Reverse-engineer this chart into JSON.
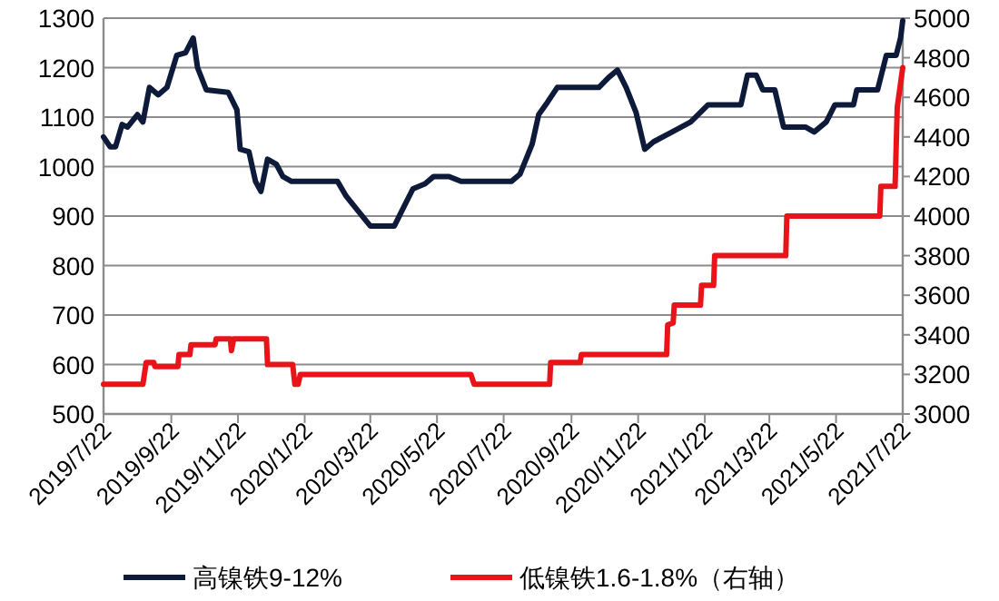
{
  "chart_data": {
    "type": "line",
    "xlim": [
      "2019-07-22",
      "2021-07-22"
    ],
    "xticks": [
      {
        "value": "2019-07-22",
        "label": "2019/7/22"
      },
      {
        "value": "2019-09-22",
        "label": "2019/9/22"
      },
      {
        "value": "2019-11-22",
        "label": "2019/11/22"
      },
      {
        "value": "2020-01-22",
        "label": "2020/1/22"
      },
      {
        "value": "2020-03-22",
        "label": "2020/3/22"
      },
      {
        "value": "2020-05-22",
        "label": "2020/5/22"
      },
      {
        "value": "2020-07-22",
        "label": "2020/7/22"
      },
      {
        "value": "2020-09-22",
        "label": "2020/9/22"
      },
      {
        "value": "2020-11-22",
        "label": "2020/11/22"
      },
      {
        "value": "2021-01-22",
        "label": "2021/1/22"
      },
      {
        "value": "2021-03-22",
        "label": "2021/3/22"
      },
      {
        "value": "2021-05-22",
        "label": "2021/5/22"
      },
      {
        "value": "2021-07-22",
        "label": "2021/7/22"
      }
    ],
    "ylim": [
      500,
      1300
    ],
    "yticks": [
      500,
      600,
      700,
      800,
      900,
      1000,
      1100,
      1200,
      1300
    ],
    "y2lim": [
      3000,
      5000
    ],
    "y2ticks": [
      3000,
      3200,
      3400,
      3600,
      3800,
      4000,
      4200,
      4400,
      4600,
      4800,
      5000
    ],
    "grid": "y",
    "legend": "bottom",
    "series": [
      {
        "name": "高镍铁9-12%",
        "color": "#0d1a3a",
        "x": [
          "2019-07-22",
          "2019-07-28",
          "2019-08-02",
          "2019-08-08",
          "2019-08-13",
          "2019-08-22",
          "2019-08-27",
          "2019-09-02",
          "2019-09-10",
          "2019-09-18",
          "2019-09-27",
          "2019-10-05",
          "2019-10-12",
          "2019-10-16",
          "2019-10-24",
          "2019-11-13",
          "2019-11-21",
          "2019-11-24",
          "2019-12-02",
          "2019-12-08",
          "2019-12-13",
          "2019-12-19",
          "2019-12-27",
          "2020-01-02",
          "2020-01-10",
          "2020-02-21",
          "2020-02-29",
          "2020-03-11",
          "2020-03-22",
          "2020-04-13",
          "2020-04-22",
          "2020-04-30",
          "2020-05-11",
          "2020-05-19",
          "2020-06-02",
          "2020-06-13",
          "2020-06-30",
          "2020-07-29",
          "2020-08-06",
          "2020-08-17",
          "2020-08-23",
          "2020-08-31",
          "2020-09-09",
          "2020-10-17",
          "2020-10-26",
          "2020-11-03",
          "2020-11-11",
          "2020-11-20",
          "2020-11-28",
          "2020-12-06",
          "2020-12-23",
          "2021-01-09",
          "2021-01-25",
          "2021-02-24",
          "2021-03-02",
          "2021-03-10",
          "2021-03-16",
          "2021-03-27",
          "2021-04-04",
          "2021-04-24",
          "2021-05-02",
          "2021-05-13",
          "2021-05-21",
          "2021-06-07",
          "2021-06-10",
          "2021-06-29",
          "2021-07-07",
          "2021-07-16",
          "2021-07-20",
          "2021-07-22"
        ],
        "values": [
          1060,
          1040,
          1040,
          1085,
          1080,
          1105,
          1090,
          1160,
          1145,
          1160,
          1225,
          1230,
          1260,
          1200,
          1155,
          1150,
          1115,
          1035,
          1030,
          970,
          950,
          1015,
          1005,
          980,
          970,
          970,
          940,
          910,
          880,
          880,
          920,
          955,
          965,
          980,
          980,
          970,
          970,
          970,
          985,
          1045,
          1105,
          1130,
          1160,
          1160,
          1180,
          1195,
          1160,
          1110,
          1035,
          1050,
          1070,
          1090,
          1125,
          1125,
          1185,
          1185,
          1155,
          1155,
          1080,
          1080,
          1070,
          1090,
          1125,
          1125,
          1155,
          1155,
          1225,
          1225,
          1260,
          1295
        ]
      },
      {
        "name": "低镍铁1.6-1.8%（右轴）",
        "color": "#e8141a",
        "axis": "y2",
        "x": [
          "2019-07-22",
          "2019-08-27",
          "2019-08-30",
          "2019-09-06",
          "2019-09-07",
          "2019-09-28",
          "2019-09-29",
          "2019-10-09",
          "2019-10-10",
          "2019-11-01",
          "2019-11-02",
          "2019-11-15",
          "2019-11-16",
          "2019-11-18",
          "2019-12-18",
          "2019-12-19",
          "2020-01-11",
          "2020-01-13",
          "2020-01-16",
          "2020-01-18",
          "2020-06-22",
          "2020-06-25",
          "2020-09-02",
          "2020-09-03",
          "2020-09-30",
          "2020-10-01",
          "2020-12-18",
          "2020-12-19",
          "2020-12-24",
          "2020-12-25",
          "2021-01-18",
          "2021-01-19",
          "2021-01-30",
          "2021-01-31",
          "2021-04-06",
          "2021-04-07",
          "2021-07-01",
          "2021-07-02",
          "2021-07-15",
          "2021-07-17",
          "2021-07-22"
        ],
        "values": [
          3150,
          3150,
          3260,
          3260,
          3240,
          3240,
          3300,
          3300,
          3350,
          3350,
          3380,
          3380,
          3320,
          3380,
          3380,
          3250,
          3250,
          3150,
          3150,
          3200,
          3200,
          3150,
          3150,
          3260,
          3260,
          3300,
          3300,
          3450,
          3460,
          3550,
          3550,
          3650,
          3650,
          3800,
          3800,
          4000,
          4000,
          4150,
          4150,
          4550,
          4750
        ]
      }
    ]
  }
}
